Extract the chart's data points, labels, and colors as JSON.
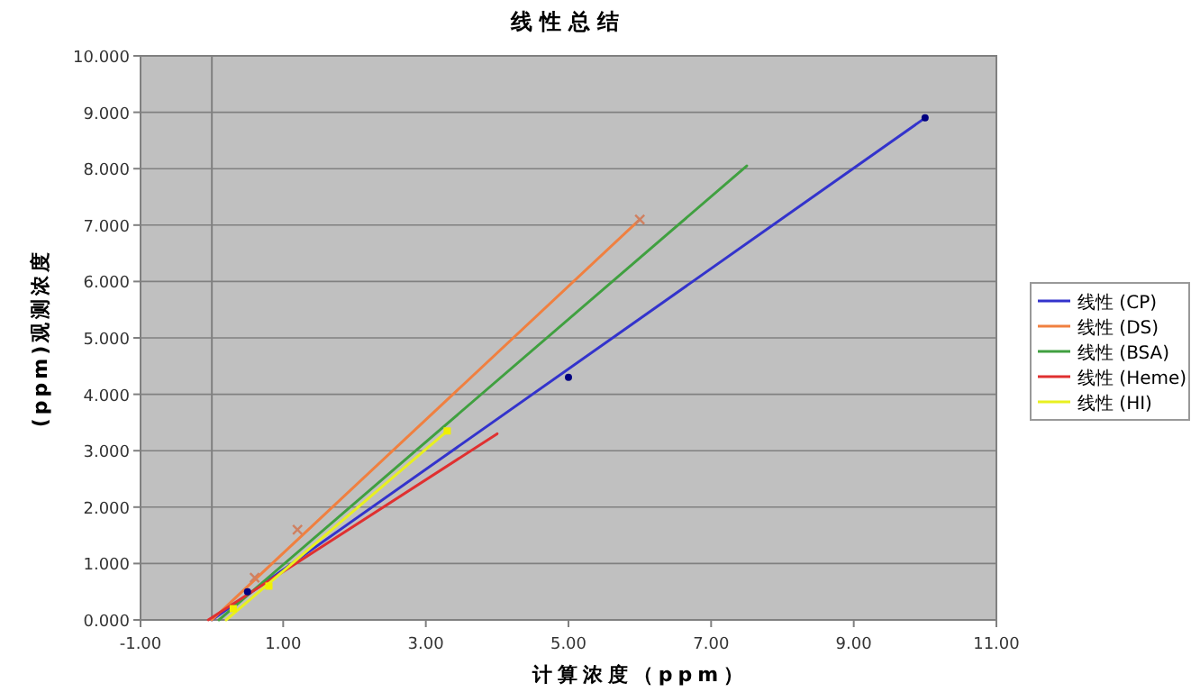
{
  "chart_data": {
    "type": "line",
    "title": "线性总结",
    "xlabel": "计算浓度（ppm）",
    "ylabel": "(ppm)观测浓度",
    "xlim": [
      -1,
      11
    ],
    "xticks": [
      {
        "value": -1,
        "label": "-1.00"
      },
      {
        "value": 1,
        "label": "1.00"
      },
      {
        "value": 3,
        "label": "3.00"
      },
      {
        "value": 5,
        "label": "5.00"
      },
      {
        "value": 7,
        "label": "7.00"
      },
      {
        "value": 9,
        "label": "9.00"
      },
      {
        "value": 11,
        "label": "11.00"
      }
    ],
    "ylim": [
      0,
      10
    ],
    "yticks": [
      {
        "value": 0,
        "label": "0.000"
      },
      {
        "value": 1,
        "label": "1.000"
      },
      {
        "value": 2,
        "label": "2.000"
      },
      {
        "value": 3,
        "label": "3.000"
      },
      {
        "value": 4,
        "label": "4.000"
      },
      {
        "value": 5,
        "label": "5.000"
      },
      {
        "value": 6,
        "label": "6.000"
      },
      {
        "value": 7,
        "label": "7.000"
      },
      {
        "value": 8,
        "label": "8.000"
      },
      {
        "value": 9,
        "label": "9.000"
      },
      {
        "value": 10,
        "label": "10.000"
      }
    ],
    "grid": "y",
    "legend": "right",
    "marker": "none",
    "line_style": "solid",
    "series": [
      {
        "name": "线性 (CP)",
        "color": "#3333cc",
        "x": [
          0,
          10
        ],
        "values": [
          0,
          8.9
        ]
      },
      {
        "name": "线性 (DS)",
        "color": "#f08040",
        "x": [
          0,
          6
        ],
        "values": [
          0,
          7.1
        ]
      },
      {
        "name": "线性 (BSA)",
        "color": "#40a040",
        "x": [
          0.1,
          7.5
        ],
        "values": [
          0,
          8.05
        ]
      },
      {
        "name": "线性 (Heme)",
        "color": "#e03030",
        "x": [
          -0.05,
          4
        ],
        "values": [
          0,
          3.3
        ]
      },
      {
        "name": "线性 (HI)",
        "color": "#e8f020",
        "x": [
          0.2,
          3.3
        ],
        "values": [
          0,
          3.35
        ]
      },
      {
        "type": "scatter",
        "color": "#000080",
        "x": [
          0.5,
          5,
          10
        ],
        "values": [
          0.5,
          4.3,
          8.9
        ],
        "marker": "circle"
      },
      {
        "type": "scatter",
        "color": "#d08060",
        "x": [
          0.6,
          1.2,
          6
        ],
        "values": [
          0.75,
          1.6,
          7.1
        ],
        "marker": "cross"
      },
      {
        "type": "scatter",
        "color": "#f0f000",
        "x": [
          0.3,
          0.8,
          3.3
        ],
        "values": [
          0.2,
          0.6,
          3.35
        ],
        "marker": "square"
      }
    ]
  }
}
